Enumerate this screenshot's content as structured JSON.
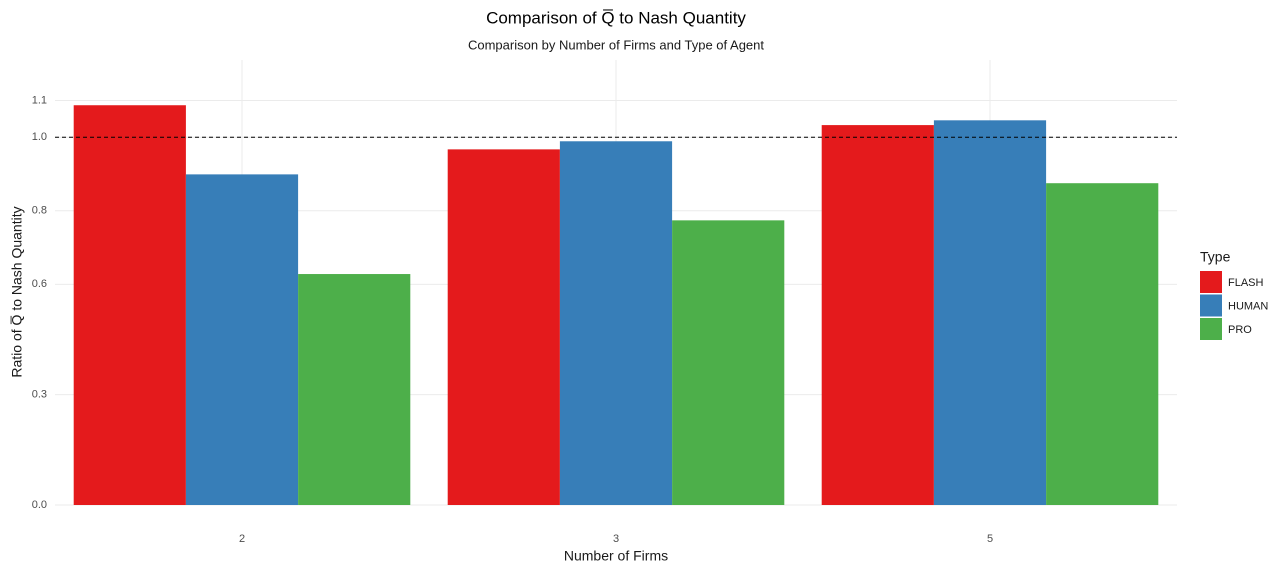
{
  "chart_data": {
    "type": "bar",
    "title": "Comparison of  Q̅ to Nash Quantity",
    "subtitle": "Comparison by Number of Firms and Type of Agent",
    "x_label": "Number of Firms",
    "y_label": "Ratio of Q̅ to Nash Quantity",
    "legend_title": "Type",
    "categories": [
      "2",
      "3",
      "5"
    ],
    "series": [
      {
        "name": "FLASH",
        "color": "#e41a1c",
        "values": [
          1.087,
          0.967,
          1.033
        ]
      },
      {
        "name": "HUMAN",
        "color": "#377eb8",
        "values": [
          0.899,
          0.989,
          1.046
        ]
      },
      {
        "name": "PRO",
        "color": "#4daf4a",
        "values": [
          0.628,
          0.774,
          0.875
        ]
      }
    ],
    "ylim": [
      0,
      1.21
    ],
    "yticks": [
      {
        "value": 0,
        "label": "0.0"
      },
      0.3,
      0.6,
      0.8,
      {
        "value": 1,
        "label": "1.0"
      },
      1.1
    ],
    "reference_line": 1,
    "grid": true,
    "legend_position": "right"
  }
}
